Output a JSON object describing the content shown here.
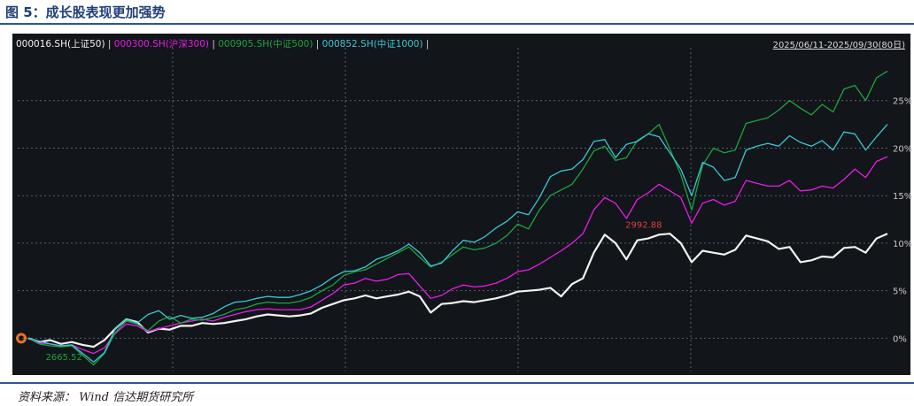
{
  "figure_title": "图 5：成长股表现更加强势",
  "source_text": "资料来源：  Wind  信达期货研究所",
  "date_range": "2025/06/11-2025/09/30(80日)",
  "colors": {
    "background": "#12151a",
    "grid": "#5a6270",
    "axis_text": "#c8c8c8",
    "title": "#1f3f7a",
    "rule": "#2e5597",
    "marker": "#e8702a"
  },
  "chart_data": {
    "type": "line",
    "grid": true,
    "legend_position": "top-left",
    "y_tick_labels": [
      "0%",
      "5%",
      "10%",
      "15%",
      "20%",
      "25%"
    ],
    "ylim": [
      -3.5,
      30
    ],
    "annotations": [
      {
        "text": "2665.52",
        "series_index": 2,
        "point_index": 2,
        "color": "#1fa33f"
      },
      {
        "text": "2992.88",
        "series_index": 0,
        "point_index": 58,
        "color": "#d94040"
      }
    ],
    "series": [
      {
        "name": "000016.SH(上证50)",
        "color": "#f2f2f2",
        "values": [
          0.0,
          -0.4,
          -0.2,
          -0.6,
          -0.4,
          -0.7,
          -0.9,
          -0.2,
          1.0,
          2.0,
          1.7,
          0.6,
          1.0,
          0.9,
          1.3,
          1.3,
          1.6,
          1.5,
          1.6,
          1.8,
          2.0,
          2.3,
          2.5,
          2.4,
          2.3,
          2.4,
          2.6,
          3.2,
          3.6,
          4.0,
          4.2,
          4.5,
          4.2,
          4.4,
          4.6,
          4.9,
          4.4,
          2.7,
          3.6,
          3.7,
          3.9,
          3.8,
          4.0,
          4.2,
          4.5,
          4.9,
          5.0,
          5.1,
          5.3,
          4.4,
          5.7,
          6.3,
          9.0,
          10.9,
          10.0,
          8.3,
          10.3,
          10.5,
          10.9,
          11.0,
          10.0,
          8.0,
          9.2,
          9.0,
          8.8,
          9.3,
          10.8,
          10.5,
          10.2,
          9.4,
          9.6,
          8.0,
          8.2,
          8.6,
          8.5,
          9.5,
          9.6,
          9.0,
          10.5,
          11.0
        ]
      },
      {
        "name": "000300.SH(沪深300)",
        "color": "#e81ce8",
        "values": [
          0.0,
          -0.5,
          -0.6,
          -0.8,
          -0.7,
          -1.2,
          -1.6,
          -1.0,
          0.5,
          1.5,
          1.3,
          0.7,
          1.0,
          1.3,
          1.6,
          1.8,
          2.0,
          1.8,
          2.2,
          2.5,
          2.8,
          3.0,
          3.1,
          3.0,
          3.0,
          3.0,
          3.3,
          4.0,
          4.7,
          5.6,
          5.8,
          6.3,
          6.0,
          6.2,
          6.7,
          6.8,
          5.5,
          4.2,
          4.5,
          5.2,
          5.6,
          5.4,
          5.5,
          5.8,
          6.3,
          7.0,
          7.2,
          7.8,
          8.5,
          9.2,
          10.0,
          11.0,
          13.5,
          14.8,
          14.2,
          12.6,
          14.6,
          15.3,
          16.2,
          15.5,
          14.8,
          12.1,
          14.2,
          14.6,
          14.0,
          14.4,
          16.6,
          16.3,
          16.0,
          16.0,
          16.6,
          15.5,
          15.6,
          16.0,
          15.8,
          16.7,
          17.8,
          16.9,
          18.6,
          19.1
        ]
      },
      {
        "name": "000905.SH(中证500)",
        "color": "#1fa33f",
        "values": [
          0.0,
          -0.6,
          -0.8,
          -0.9,
          -0.8,
          -1.8,
          -2.8,
          -1.6,
          0.6,
          1.8,
          1.5,
          0.8,
          1.8,
          2.3,
          1.6,
          2.0,
          1.9,
          2.2,
          2.5,
          3.0,
          3.2,
          3.6,
          3.8,
          3.7,
          3.7,
          3.9,
          4.3,
          5.0,
          5.6,
          6.6,
          7.0,
          7.2,
          7.8,
          8.4,
          9.0,
          9.6,
          8.5,
          7.5,
          8.0,
          8.8,
          9.6,
          9.3,
          9.5,
          10.0,
          10.8,
          12.0,
          11.5,
          13.5,
          15.0,
          15.6,
          16.2,
          17.8,
          19.7,
          20.2,
          18.7,
          19.0,
          20.8,
          21.5,
          22.5,
          19.9,
          17.2,
          13.5,
          18.2,
          20.0,
          19.5,
          19.8,
          22.6,
          22.9,
          23.2,
          24.0,
          25.0,
          24.2,
          23.5,
          24.6,
          23.8,
          26.2,
          26.6,
          25.0,
          27.4,
          28.1
        ]
      },
      {
        "name": "000852.SH(中证1000)",
        "color": "#3cc8d4",
        "values": [
          0.0,
          -0.3,
          -0.6,
          -0.8,
          -0.7,
          -1.6,
          -2.5,
          -1.5,
          1.0,
          2.0,
          1.6,
          2.5,
          2.9,
          2.0,
          2.4,
          2.1,
          2.2,
          2.6,
          3.3,
          3.8,
          3.9,
          4.2,
          4.4,
          4.3,
          4.3,
          4.6,
          5.0,
          5.6,
          6.4,
          7.0,
          7.1,
          7.5,
          8.3,
          8.7,
          9.2,
          9.9,
          9.0,
          7.6,
          7.9,
          9.2,
          10.3,
          10.1,
          10.7,
          11.6,
          12.3,
          13.3,
          13.0,
          14.8,
          17.0,
          17.6,
          17.8,
          18.8,
          20.7,
          20.9,
          19.0,
          20.4,
          20.7,
          21.5,
          21.2,
          19.5,
          17.8,
          15.0,
          18.5,
          18.0,
          16.6,
          16.9,
          19.8,
          20.2,
          20.5,
          20.2,
          21.3,
          20.6,
          20.2,
          20.8,
          19.8,
          21.7,
          21.5,
          19.8,
          21.2,
          22.5
        ]
      }
    ]
  }
}
